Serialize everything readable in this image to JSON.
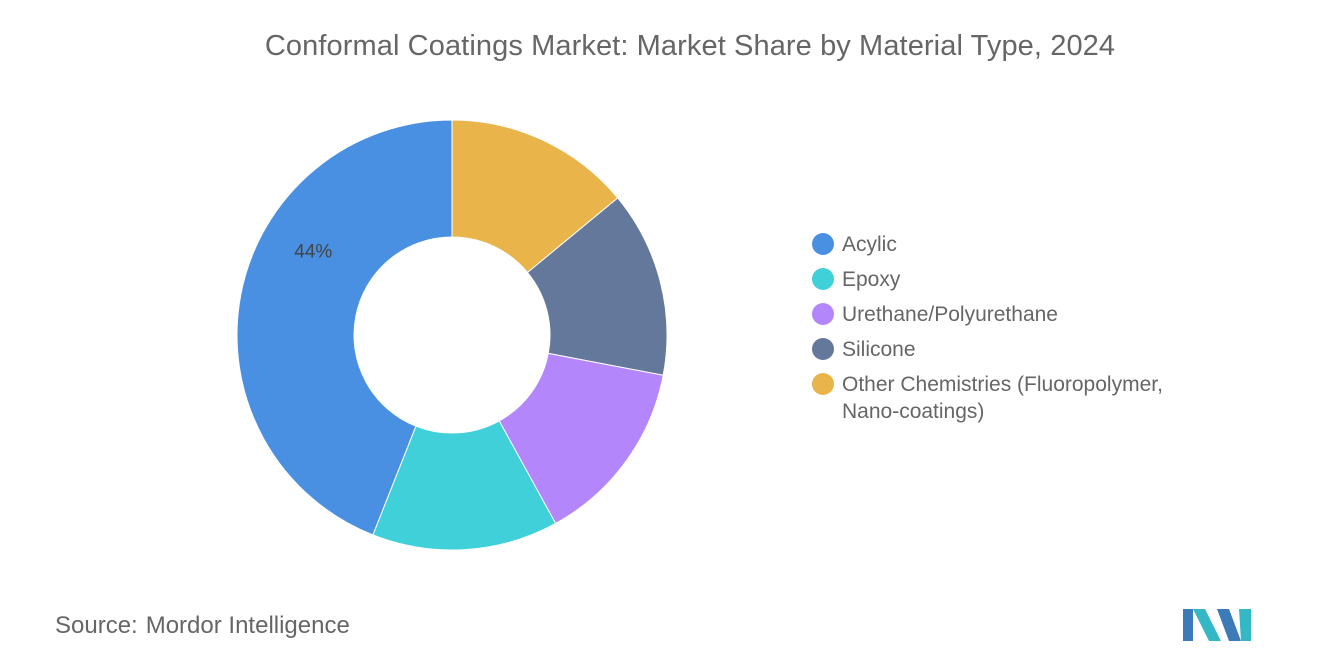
{
  "title": "Conformal Coatings Market: Market Share by Material Type, 2024",
  "source": {
    "label": "Source:",
    "value": "Mordor Intelligence"
  },
  "chart_data": {
    "type": "pie",
    "donut": true,
    "categories": [
      "Acylic",
      "Epoxy",
      "Urethane/Polyurethane",
      "Silicone",
      "Other Chemistries (Fluoropolymer, Nano-coatings)"
    ],
    "values": [
      44,
      14,
      14,
      14,
      14
    ],
    "colors": [
      "#4a90e2",
      "#3fd0d9",
      "#b386fc",
      "#63789b",
      "#e9b54b"
    ],
    "data_labels": [
      {
        "category": "Acylic",
        "text": "44%"
      }
    ],
    "legend_position": "right",
    "title": "Conformal Coatings Market: Market Share by Material Type, 2024"
  },
  "logo": {
    "colors": [
      "#3c7bb7",
      "#35b8c6"
    ]
  }
}
